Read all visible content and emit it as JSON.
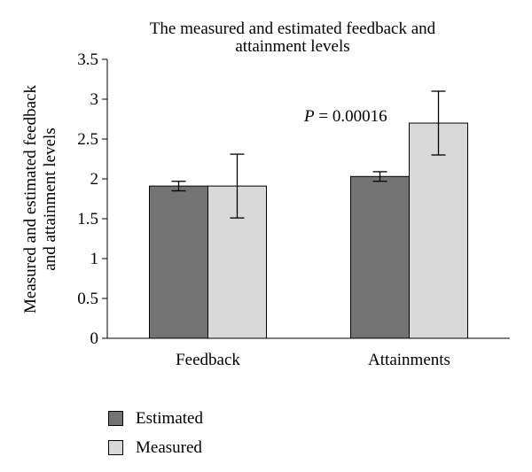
{
  "chart_data": {
    "type": "bar",
    "title_lines": [
      "The measured and estimated feedback and",
      "attainment levels"
    ],
    "ylabel_lines": [
      "Measured and estimated feedback",
      "and attainment levels"
    ],
    "xlabel": "",
    "categories": [
      "Feedback",
      "Attainments"
    ],
    "ylim": [
      0,
      3.5
    ],
    "yticks": [
      "0",
      "0.5",
      "1",
      "1.5",
      "2",
      "2.5",
      "3",
      "3.5"
    ],
    "series": [
      {
        "name": "Estimated",
        "values": [
          1.91,
          2.03
        ],
        "error": [
          0.06,
          0.06
        ],
        "color": "#737373"
      },
      {
        "name": "Measured",
        "values": [
          1.91,
          2.7
        ],
        "error": [
          0.4,
          0.4
        ],
        "color": "#d9d9d9"
      }
    ],
    "annotation": {
      "text_italic": "P",
      "text_rest": " = 0.00016"
    },
    "legend_position": "bottom-left",
    "grid": false
  }
}
